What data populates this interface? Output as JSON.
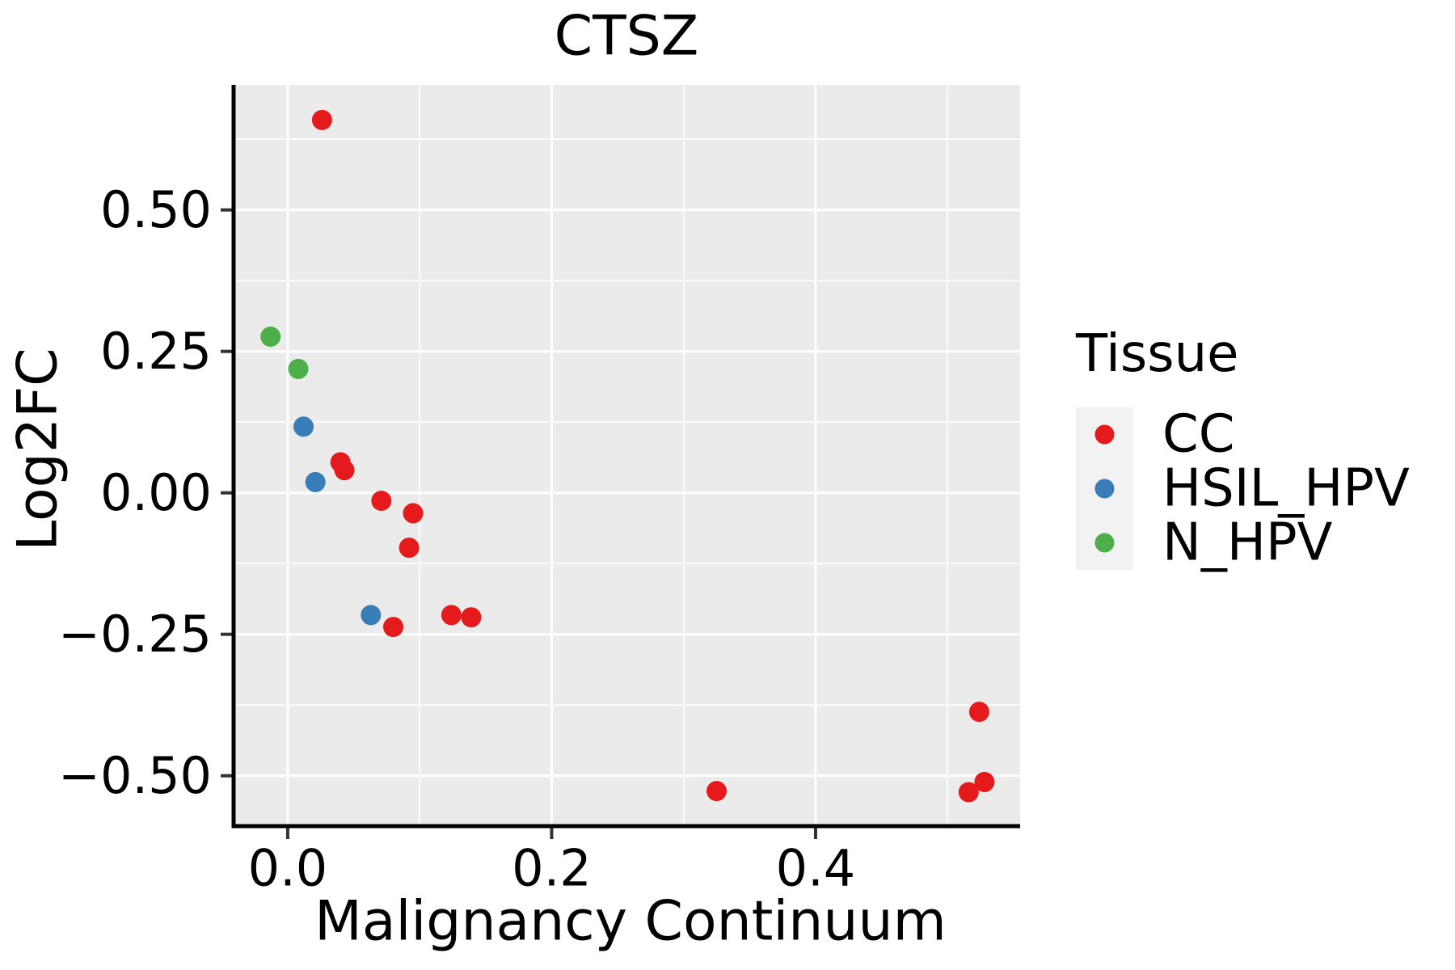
{
  "page": {
    "background": "#FFFFFF"
  },
  "title": "CTSZ",
  "legend": {
    "title": "Tissue",
    "position": "right",
    "key_fill": "#F2F2F2",
    "entries": [
      {
        "label": "CC",
        "color": "#E41A1C"
      },
      {
        "label": "HSIL_HPV",
        "color": "#377EB8"
      },
      {
        "label": "N_HPV",
        "color": "#4DAF4A"
      }
    ]
  },
  "chart_data": {
    "type": "scatter",
    "title": "CTSZ",
    "xlabel": "Malignancy Continuum",
    "ylabel": "Log2FC",
    "xlim": [
      -0.041,
      0.555
    ],
    "ylim": [
      -0.589,
      0.721
    ],
    "x_major_ticks": [
      {
        "value": 0.0,
        "label": "0.0"
      },
      {
        "value": 0.2,
        "label": "0.2"
      },
      {
        "value": 0.4,
        "label": "0.4"
      }
    ],
    "x_minor_ticks": [
      0.1,
      0.3,
      0.5
    ],
    "y_major_ticks": [
      {
        "value": 0.5,
        "label": "0.50"
      },
      {
        "value": 0.25,
        "label": "0.25"
      },
      {
        "value": 0.0,
        "label": "0.00"
      },
      {
        "value": -0.25,
        "label": "−0.25"
      },
      {
        "value": -0.5,
        "label": "−0.50"
      }
    ],
    "y_minor_ticks": [
      0.625,
      0.375,
      0.125,
      -0.125,
      -0.375
    ],
    "grid": {
      "panel_fill": "#EBEBEB",
      "major_color": "#FFFFFF",
      "minor_color": "#FFFFFF",
      "axis_color": "#000000",
      "tick_color": "#333333"
    },
    "legend_position": "right",
    "series": [
      {
        "name": "CC",
        "color": "#E41A1C",
        "points": [
          [
            0.026,
            0.659
          ],
          [
            0.04,
            0.054
          ],
          [
            0.043,
            0.04
          ],
          [
            0.071,
            -0.014
          ],
          [
            0.095,
            -0.036
          ],
          [
            0.092,
            -0.097
          ],
          [
            0.08,
            -0.237
          ],
          [
            0.124,
            -0.216
          ],
          [
            0.139,
            -0.22
          ],
          [
            0.325,
            -0.527
          ],
          [
            0.516,
            -0.529
          ],
          [
            0.528,
            -0.511
          ],
          [
            0.524,
            -0.387
          ]
        ]
      },
      {
        "name": "HSIL_HPV",
        "color": "#377EB8",
        "points": [
          [
            0.012,
            0.117
          ],
          [
            0.021,
            0.019
          ],
          [
            0.063,
            -0.216
          ]
        ]
      },
      {
        "name": "N_HPV",
        "color": "#4DAF4A",
        "points": [
          [
            -0.013,
            0.276
          ],
          [
            0.008,
            0.219
          ]
        ]
      }
    ]
  }
}
